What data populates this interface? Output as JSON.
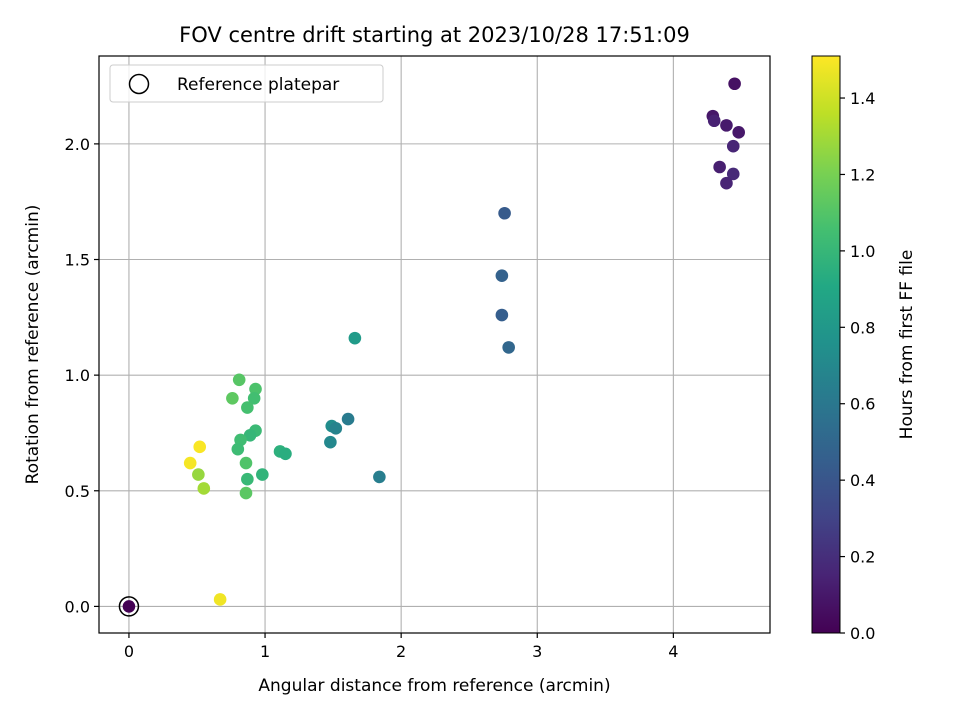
{
  "chart_data": {
    "type": "scatter",
    "title": "FOV centre drift starting at 2023/10/28 17:51:09",
    "xlabel": "Angular distance from reference (arcmin)",
    "ylabel": "Rotation from reference (arcmin)",
    "xlim": [
      -0.22,
      4.71
    ],
    "ylim": [
      -0.115,
      2.38
    ],
    "xticks": [
      0,
      1,
      2,
      3,
      4
    ],
    "xtick_labels": [
      "0",
      "1",
      "2",
      "3",
      "4"
    ],
    "yticks": [
      0.0,
      0.5,
      1.0,
      1.5,
      2.0
    ],
    "ytick_labels": [
      "0.0",
      "0.5",
      "1.0",
      "1.5",
      "2.0"
    ],
    "grid": true,
    "legend": {
      "placement": "top-left",
      "entries": [
        "Reference platepar"
      ]
    },
    "colorbar": {
      "label": "Hours from first FF file",
      "range": [
        0.0,
        1.51
      ],
      "ticks": [
        0.0,
        0.2,
        0.4,
        0.6,
        0.8,
        1.0,
        1.2,
        1.4
      ],
      "tick_labels": [
        "0.0",
        "0.2",
        "0.4",
        "0.6",
        "0.8",
        "1.0",
        "1.2",
        "1.4"
      ],
      "colormap": "viridis"
    },
    "reference_point": {
      "x": 0.0,
      "y": 0.0
    },
    "points": [
      {
        "x": 0.0,
        "y": 0.0,
        "h": 0.0
      },
      {
        "x": 4.45,
        "y": 2.26,
        "h": 0.07
      },
      {
        "x": 4.29,
        "y": 2.12,
        "h": 0.09
      },
      {
        "x": 4.3,
        "y": 2.1,
        "h": 0.14
      },
      {
        "x": 4.39,
        "y": 2.08,
        "h": 0.11
      },
      {
        "x": 4.48,
        "y": 2.05,
        "h": 0.1
      },
      {
        "x": 4.44,
        "y": 1.99,
        "h": 0.16
      },
      {
        "x": 4.34,
        "y": 1.9,
        "h": 0.13
      },
      {
        "x": 4.44,
        "y": 1.87,
        "h": 0.18
      },
      {
        "x": 4.39,
        "y": 1.83,
        "h": 0.15
      },
      {
        "x": 2.76,
        "y": 1.7,
        "h": 0.43
      },
      {
        "x": 2.74,
        "y": 1.43,
        "h": 0.47
      },
      {
        "x": 2.74,
        "y": 1.26,
        "h": 0.45
      },
      {
        "x": 2.79,
        "y": 1.12,
        "h": 0.5
      },
      {
        "x": 1.66,
        "y": 1.16,
        "h": 0.82
      },
      {
        "x": 1.61,
        "y": 0.81,
        "h": 0.62
      },
      {
        "x": 1.49,
        "y": 0.78,
        "h": 0.73
      },
      {
        "x": 1.52,
        "y": 0.77,
        "h": 0.67
      },
      {
        "x": 1.48,
        "y": 0.71,
        "h": 0.7
      },
      {
        "x": 1.84,
        "y": 0.56,
        "h": 0.64
      },
      {
        "x": 0.81,
        "y": 0.98,
        "h": 1.11
      },
      {
        "x": 0.93,
        "y": 0.94,
        "h": 1.08
      },
      {
        "x": 0.76,
        "y": 0.9,
        "h": 1.13
      },
      {
        "x": 0.92,
        "y": 0.9,
        "h": 1.05
      },
      {
        "x": 0.87,
        "y": 0.86,
        "h": 1.06
      },
      {
        "x": 0.93,
        "y": 0.76,
        "h": 1.02
      },
      {
        "x": 0.89,
        "y": 0.74,
        "h": 1.0
      },
      {
        "x": 0.82,
        "y": 0.72,
        "h": 1.04
      },
      {
        "x": 0.8,
        "y": 0.68,
        "h": 1.03
      },
      {
        "x": 1.11,
        "y": 0.67,
        "h": 0.96
      },
      {
        "x": 1.15,
        "y": 0.66,
        "h": 0.94
      },
      {
        "x": 0.86,
        "y": 0.62,
        "h": 1.09
      },
      {
        "x": 0.98,
        "y": 0.57,
        "h": 0.98
      },
      {
        "x": 0.87,
        "y": 0.55,
        "h": 1.01
      },
      {
        "x": 0.86,
        "y": 0.49,
        "h": 1.12
      },
      {
        "x": 0.52,
        "y": 0.69,
        "h": 1.5
      },
      {
        "x": 0.45,
        "y": 0.62,
        "h": 1.49
      },
      {
        "x": 0.51,
        "y": 0.57,
        "h": 1.27
      },
      {
        "x": 0.55,
        "y": 0.51,
        "h": 1.3
      },
      {
        "x": 0.67,
        "y": 0.03,
        "h": 1.48
      }
    ]
  }
}
